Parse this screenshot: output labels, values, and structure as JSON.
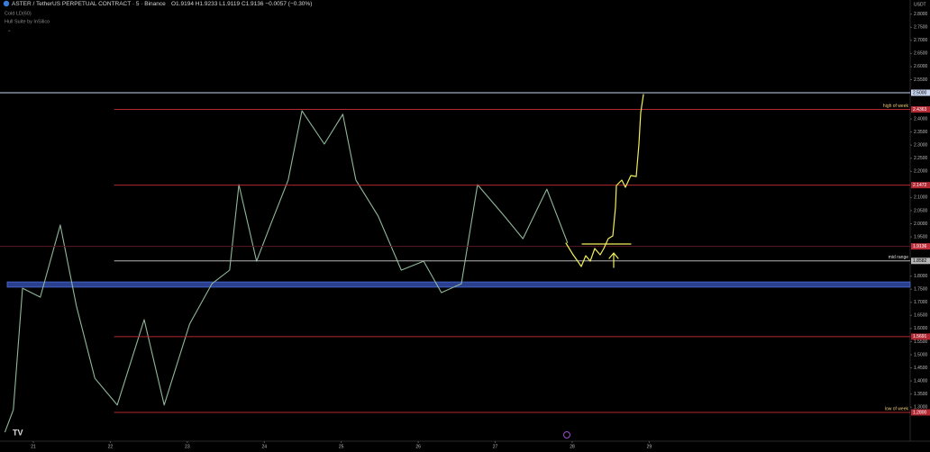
{
  "header": {
    "symbol": "ASTER / TetherUS PERPETUAL CONTRACT · 5 · Binance",
    "ohlc": "O1.9194 H1.9233 L1.9119 C1.9136 −0.0057 (−0.30%)",
    "indicators": [
      "Cold LD(60)",
      "Hull Suite by InSilico"
    ],
    "currency": "USDT"
  },
  "chart_data": {
    "type": "line",
    "x": [
      20.63,
      20.74,
      20.86,
      21.09,
      21.35,
      21.56,
      21.8,
      22.09,
      22.44,
      22.7,
      23.03,
      23.32,
      23.55,
      23.67,
      23.9,
      24.08,
      24.31,
      24.49,
      24.78,
      25.02,
      25.19,
      25.48,
      25.78,
      26.07,
      26.3,
      26.56,
      26.77,
      27.12,
      27.36,
      27.67,
      27.94
    ],
    "values": [
      1.204,
      1.29,
      1.754,
      1.72,
      1.995,
      1.686,
      1.41,
      1.308,
      1.634,
      1.308,
      1.617,
      1.771,
      1.823,
      2.149,
      1.857,
      1.995,
      2.167,
      2.431,
      2.304,
      2.418,
      2.167,
      2.029,
      1.823,
      1.857,
      1.737,
      1.771,
      2.149,
      2.029,
      1.943,
      2.132,
      1.926
    ],
    "color": "#8fb89a",
    "xlim": [
      20.567,
      32.39
    ],
    "ylim": [
      1.17,
      2.854
    ],
    "xticks": [
      21,
      22,
      23,
      24,
      25,
      26,
      27,
      28,
      29
    ],
    "yticks": [
      {
        "value": 2.8,
        "label": "2.8000"
      },
      {
        "value": 2.75,
        "label": "2.7500"
      },
      {
        "value": 2.7,
        "label": "2.7000"
      },
      {
        "value": 2.65,
        "label": "2.6500"
      },
      {
        "value": 2.6,
        "label": "2.6000"
      },
      {
        "value": 2.55,
        "label": "2.5500"
      },
      {
        "value": 2.4,
        "label": "2.4000"
      },
      {
        "value": 2.35,
        "label": "2.3500"
      },
      {
        "value": 2.3,
        "label": "2.3000"
      },
      {
        "value": 2.25,
        "label": "2.2500"
      },
      {
        "value": 2.2,
        "label": "2.2000"
      },
      {
        "value": 2.1,
        "label": "2.1000"
      },
      {
        "value": 2.05,
        "label": "2.0500"
      },
      {
        "value": 2,
        "label": "2.0000"
      },
      {
        "value": 1.95,
        "label": "1.9500"
      },
      {
        "value": 1.8,
        "label": "1.8000"
      },
      {
        "value": 1.75,
        "label": "1.7500"
      },
      {
        "value": 1.7,
        "label": "1.7000"
      },
      {
        "value": 1.65,
        "label": "1.6500"
      },
      {
        "value": 1.6,
        "label": "1.6000"
      },
      {
        "value": 1.55,
        "label": "1.5500"
      },
      {
        "value": 1.5,
        "label": "1.5000"
      },
      {
        "value": 1.45,
        "label": "1.4500"
      },
      {
        "value": 1.4,
        "label": "1.4000"
      },
      {
        "value": 1.35,
        "label": "1.3500"
      },
      {
        "value": 1.3,
        "label": "1.3000"
      }
    ],
    "zone": {
      "low": 1.758,
      "high": 1.778,
      "color": "#2b3f8f"
    },
    "levels": [
      {
        "price": {
          "value": 2.5,
          "label": "2.5000"
        },
        "color": "#c9d6f0",
        "from": 20.567
      },
      {
        "price": {
          "value": 2.4363,
          "label": "2.4363"
        },
        "color": "#b22833",
        "from": 22.05,
        "name": "high of week"
      },
      {
        "price": {
          "value": 2.1472,
          "label": "2.1472"
        },
        "color": "#b22833",
        "from": 22.05
      },
      {
        "price": {
          "value": 1.9136,
          "label": "1.9136"
        },
        "color": "#5a1a20",
        "from": 20.567
      },
      {
        "price": {
          "value": 1.8582,
          "label": "1.8582"
        },
        "color": "#b5b5b5",
        "from": 22.05,
        "name": "mid range"
      },
      {
        "price": {
          "value": 1.5691,
          "label": "1.5691"
        },
        "color": "#b22833",
        "from": 22.05
      },
      {
        "price": {
          "value": 1.28,
          "label": "1.2800"
        },
        "color": "#b22833",
        "from": 22.05,
        "name": "low of week"
      }
    ]
  }
}
